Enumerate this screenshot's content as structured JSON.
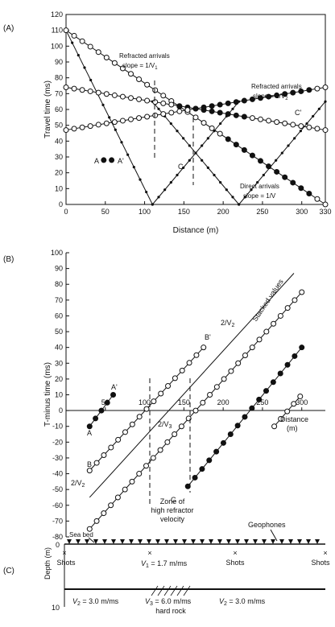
{
  "panel_labels": {
    "a": "(A)",
    "b": "(B)",
    "c": "(C)"
  },
  "panel_a": {
    "ylabel": "Travel time (ms)",
    "xlabel": "Distance (m)",
    "xticks": [
      0,
      50,
      100,
      150,
      200,
      250,
      300,
      330
    ],
    "yticks": [
      0,
      10,
      20,
      30,
      40,
      50,
      60,
      70,
      80,
      90,
      100,
      110,
      120
    ],
    "ann_refr1_a": "Refracted arrivals",
    "ann_refr1_b": "slope = 1/V",
    "ann_refr1_sub": "1",
    "ann_refr2_a": "Refracted arrivals",
    "ann_refr2_b": "slope = 1/V",
    "ann_refr2_sub": "2",
    "ann_direct_a": "Direct arrivals",
    "ann_direct_b": "slope = 1/V",
    "pt_A": "A",
    "pt_A2": "A'",
    "pt_C": "C",
    "pt_C2": "C'"
  },
  "panel_b": {
    "ylabel": "T-minus time (ms)",
    "xlabel": "Distance",
    "xlabel_unit": "(m)",
    "xticks": [
      50,
      100,
      150,
      200,
      250,
      300
    ],
    "yticks": [
      100,
      90,
      80,
      70,
      60,
      50,
      40,
      30,
      20,
      10,
      0,
      -10,
      -20,
      -30,
      -40,
      -50,
      -60,
      -70,
      -80
    ],
    "ann_stacked": "Stacked values",
    "ann_2v2_top": "2/V",
    "ann_2v2_top_sub": "2",
    "ann_2v3": "2/V",
    "ann_2v3_sub": "3",
    "ann_2v2_left": "2/V",
    "ann_2v2_left_sub": "2",
    "zone_1": "Zone of",
    "zone_2": "high refractor",
    "zone_3": "velocity",
    "pt_A": "A",
    "pt_A2": "A'",
    "pt_B": "B",
    "pt_B2": "B'",
    "pt_C": "C"
  },
  "panel_c": {
    "ylabel": "Depth (m)",
    "ytick_0": "0",
    "ytick_10": "10",
    "sea_bed": "Sea bed",
    "geophones": "Geophones",
    "shots_1": "Shots",
    "shots_2": "Shots",
    "shots_3": "Shots",
    "v1": "V",
    "v1_sub": "1",
    "v1_val": " = 1.7 m/ms",
    "v2_left": "V",
    "v2_left_sub": "2",
    "v2_left_val": " = 3.0 m/ms",
    "v3": "V",
    "v3_sub": "3",
    "v3_val": " = 6.0 m/ms",
    "hard_rock": "hard rock",
    "v2_right": "V",
    "v2_right_sub": "2",
    "v2_right_val": " = 3.0 m/ms"
  },
  "chart_data": [
    {
      "type": "line",
      "panel": "A",
      "xlabel": "Distance (m)",
      "ylabel": "Travel time (ms)",
      "xlim": [
        0,
        330
      ],
      "ylim": [
        0,
        120
      ],
      "series": [
        {
          "x": [
            0,
            110
          ],
          "y": [
            110,
            0
          ]
        },
        {
          "x": [
            110,
            220
          ],
          "y": [
            0,
            65
          ]
        },
        {
          "x": [
            110,
            220
          ],
          "y": [
            65,
            0
          ]
        },
        {
          "x": [
            220,
            330
          ],
          "y": [
            0,
            65
          ]
        },
        {
          "x": [
            0,
            330
          ],
          "y": [
            74,
            47
          ]
        },
        {
          "x": [
            0,
            330
          ],
          "y": [
            47,
            74
          ]
        },
        {
          "x": [
            0,
            330
          ],
          "y": [
            110,
            0
          ]
        }
      ]
    },
    {
      "type": "line",
      "panel": "B",
      "xlabel": "Distance (m)",
      "ylabel": "T-minus time (ms)",
      "xlim": [
        0,
        330
      ],
      "ylim": [
        -80,
        100
      ],
      "series": [
        {
          "x": [
            30,
            60
          ],
          "y": [
            -10,
            10
          ]
        },
        {
          "x": [
            30,
            175
          ],
          "y": [
            -38,
            40
          ]
        },
        {
          "x": [
            30,
            300
          ],
          "y": [
            -75,
            75
          ]
        },
        {
          "x": [
            155,
            300
          ],
          "y": [
            -48,
            40
          ]
        },
        {
          "x": [
            265,
            298
          ],
          "y": [
            -10,
            9
          ]
        },
        {
          "x": [
            30,
            290
          ],
          "y": [
            -55,
            87
          ]
        }
      ]
    }
  ]
}
